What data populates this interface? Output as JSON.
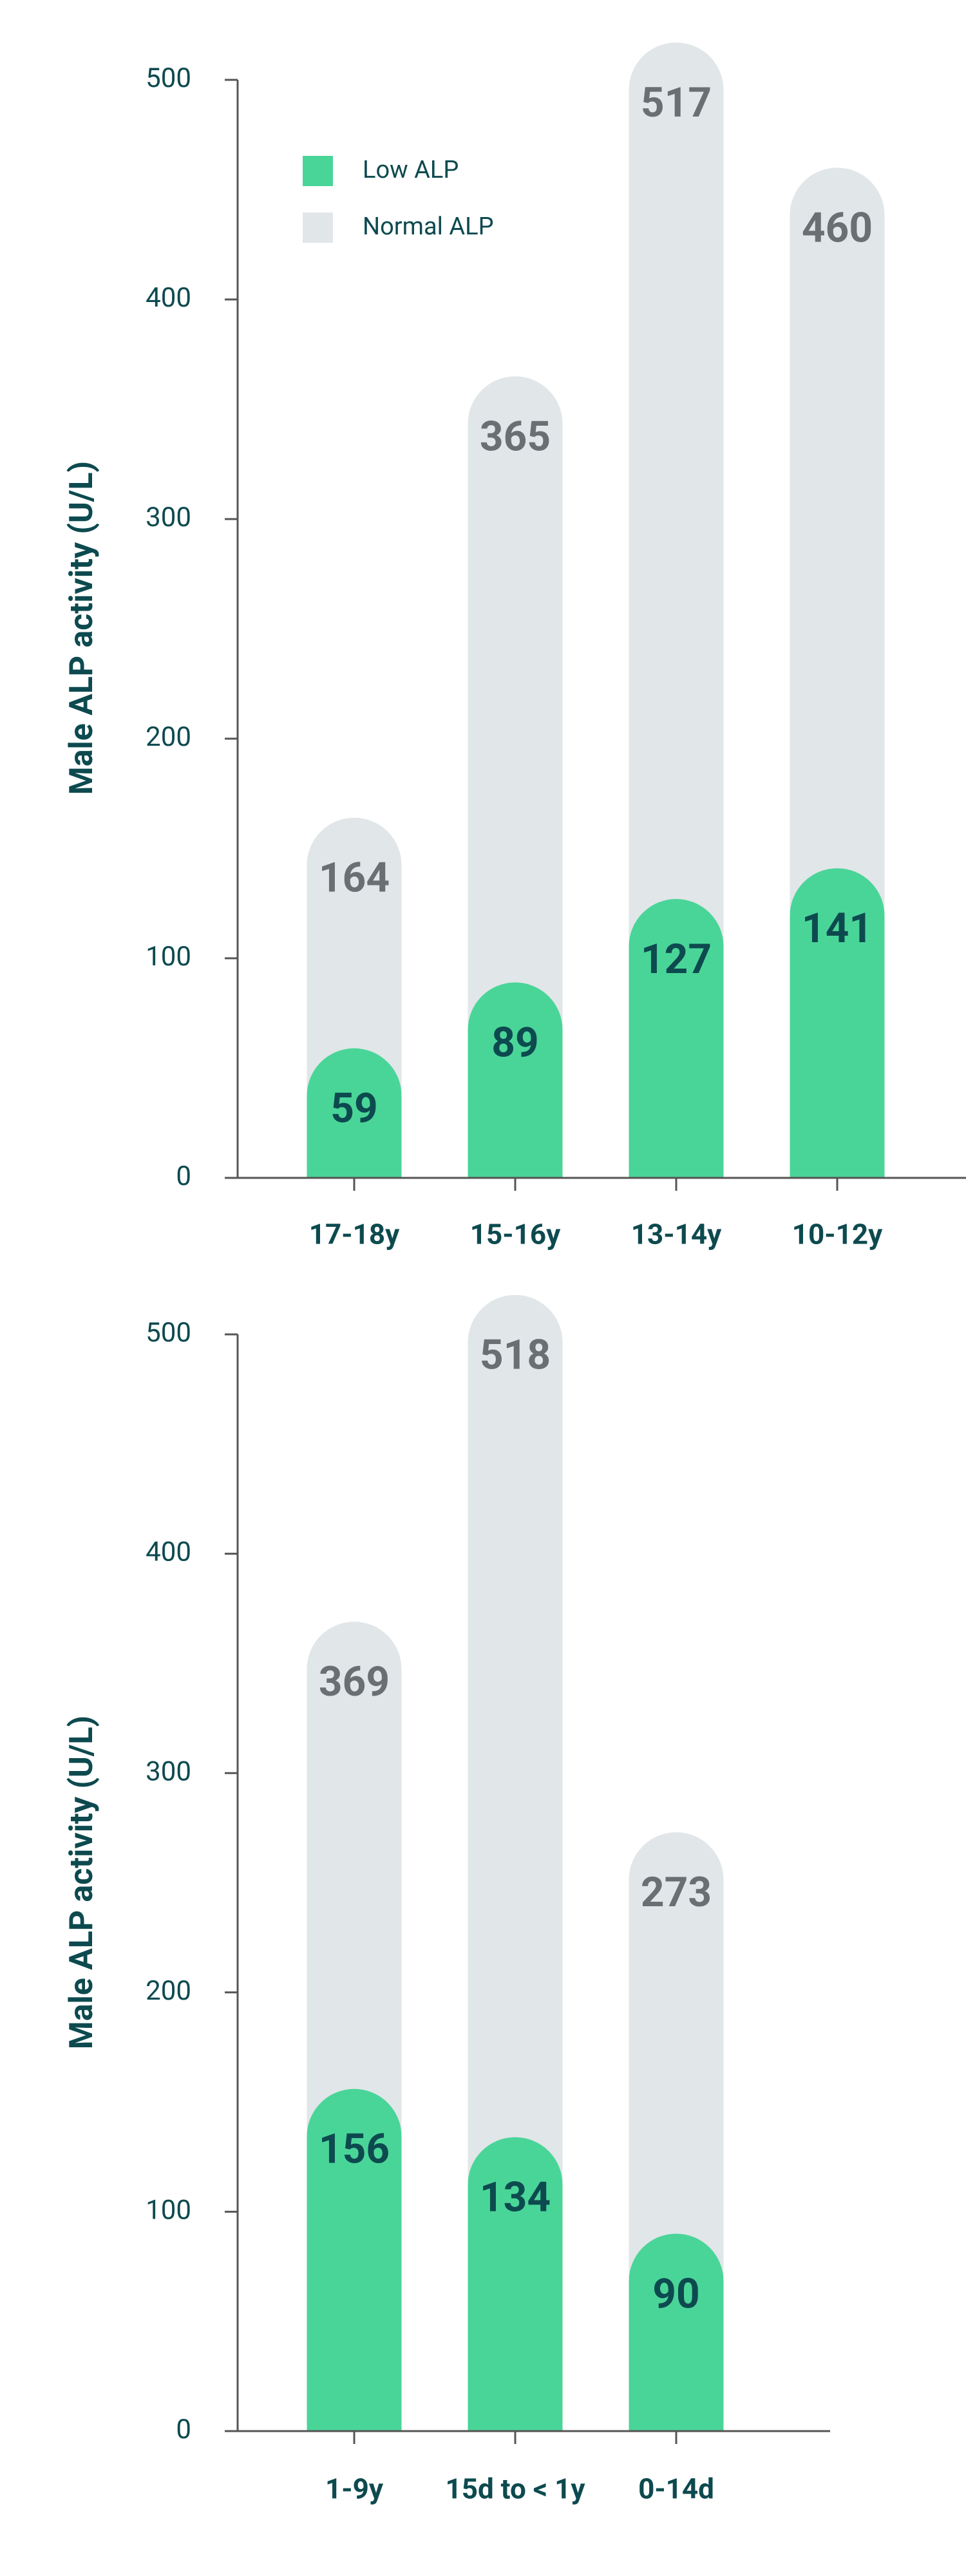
{
  "chart_data": [
    {
      "type": "bar",
      "y_label": "Male ALP activity (U/L)",
      "categories": [
        "17-18y",
        "15-16y",
        "13-14y",
        "10-12y"
      ],
      "series": [
        {
          "name": "Low ALP",
          "color": "#4ad598",
          "values": [
            59,
            89,
            127,
            141
          ]
        },
        {
          "name": "Normal ALP",
          "color": "#e1e6e9",
          "values": [
            164,
            365,
            517,
            460
          ]
        }
      ],
      "ylim": [
        0,
        500
      ],
      "yticks": [
        0,
        100,
        200,
        300,
        400,
        500
      ],
      "legend": "upper left"
    },
    {
      "type": "bar",
      "y_label": "Male ALP activity (U/L)",
      "categories": [
        "1-9y",
        "15d to < 1y",
        "0-14d"
      ],
      "series": [
        {
          "color": "#4ad598",
          "values": [
            156,
            134,
            90
          ]
        },
        {
          "color": "#e1e6e9",
          "values": [
            369,
            518,
            273
          ]
        }
      ],
      "ylim": [
        0,
        500
      ],
      "yticks": [
        0,
        100,
        200,
        300,
        400,
        500
      ]
    }
  ]
}
